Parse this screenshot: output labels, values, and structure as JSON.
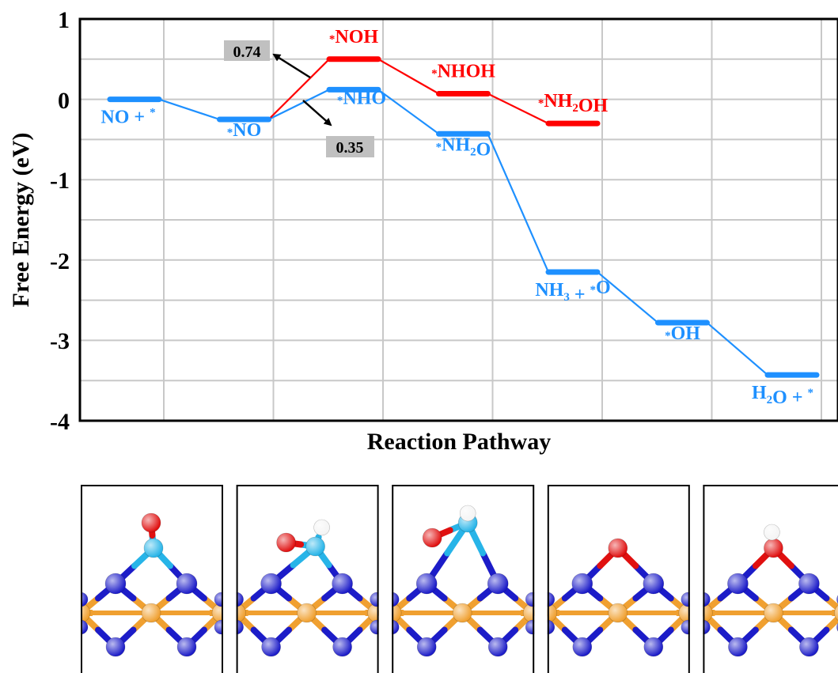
{
  "chart_data": {
    "type": "line",
    "title": "",
    "xlabel": "Reaction Pathway",
    "ylabel": "Free Energy (eV)",
    "ylim": [
      -4,
      1
    ],
    "yticks": [
      "1",
      "0",
      "-1",
      "-2",
      "-3",
      "-4"
    ],
    "grid": true,
    "colors": {
      "main": "#1e90ff",
      "alt": "#ff0000",
      "axis": "#000000",
      "grid": "#c8c8c8",
      "annotation_box": "#c0c0c0",
      "nitrogen_light": "#27b4e8",
      "nitrogen_dark": "#1c1cc8",
      "oxygen": "#e01010",
      "hydrogen": "#ffffff",
      "metal": "#f0a030"
    },
    "series": [
      {
        "color": "#1e90ff",
        "steps": [
          {
            "value": 0.0,
            "label_main": "NO + ",
            "label_sup_after": "*"
          },
          {
            "value": -0.25,
            "label_sup_before": "*",
            "label_main": "NO"
          },
          {
            "value": 0.12,
            "label_sup_before": "*",
            "label_main": "NHO"
          },
          {
            "value": -0.43,
            "label_sup_before": "*",
            "label_main": "NH",
            "label_sub": "2",
            "label_tail": "O"
          },
          {
            "value": -2.15,
            "label_main": "NH",
            "label_sub": "3",
            "label_tail": " + ",
            "label_sup_mid": "*",
            "label_tail2": "O"
          },
          {
            "value": -2.78,
            "label_sup_before": "*",
            "label_main": "OH"
          },
          {
            "value": -3.43,
            "label_main": "H",
            "label_sub": "2",
            "label_tail": "O + ",
            "label_sup_after": "*"
          }
        ]
      },
      {
        "color": "#ff0000",
        "steps": [
          {
            "position": 2,
            "value": 0.5,
            "label_sup_before": "*",
            "label_main": "NOH"
          },
          {
            "position": 3,
            "value": 0.07,
            "label_sup_before": "*",
            "label_main": "NHOH"
          },
          {
            "position": 4,
            "value": -0.3,
            "label_sup_before": "*",
            "label_main": "NH",
            "label_sub": "2",
            "label_tail": "OH"
          }
        ]
      }
    ],
    "annotations": [
      {
        "text": "0.74",
        "target": "*NOH"
      },
      {
        "text": "0.35",
        "target": "*NHO"
      }
    ]
  },
  "structures": [
    {
      "atoms": [
        "metal",
        "nitrogen_dark",
        "nitrogen_light",
        "oxygen"
      ]
    },
    {
      "atoms": [
        "metal",
        "nitrogen_dark",
        "nitrogen_light",
        "oxygen",
        "hydrogen"
      ]
    },
    {
      "atoms": [
        "metal",
        "nitrogen_dark",
        "nitrogen_light",
        "oxygen",
        "hydrogen"
      ]
    },
    {
      "atoms": [
        "metal",
        "nitrogen_dark",
        "oxygen"
      ]
    },
    {
      "atoms": [
        "metal",
        "nitrogen_dark",
        "oxygen",
        "hydrogen"
      ]
    }
  ]
}
